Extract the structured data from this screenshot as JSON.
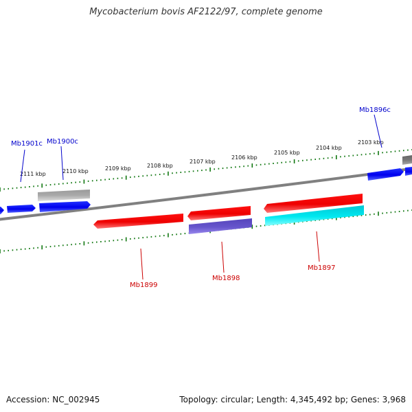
{
  "title": "Mycobacterium bovis AF2122/97, complete genome",
  "footer": {
    "accession": "Accession: NC_002945",
    "summary": "Topology: circular; Length: 4,345,492 bp; Genes: 3,968"
  },
  "colors": {
    "forward_label": "#0000cc",
    "reverse_label": "#cc0000",
    "tick": "#117711",
    "backbone": "#808080",
    "gene_blue": "#0000ee",
    "gene_gray": "#aaaaaa",
    "gene_red": "#ee0000",
    "gene_purple": "#6655cc",
    "gene_cyan": "#00e0e8"
  },
  "scale_labels": [
    "2111 kbp",
    "2110 kbp",
    "2109 kbp",
    "2108 kbp",
    "2107 kbp",
    "2106 kbp",
    "2105 kbp",
    "2104 kbp",
    "2103 kbp"
  ],
  "gene_labels": {
    "mb1901c": "Mb1901c",
    "mb1900c": "Mb1900c",
    "mb1896c": "Mb1896c",
    "mb1899": "Mb1899",
    "mb1898": "Mb1898",
    "mb1897": "Mb1897"
  }
}
